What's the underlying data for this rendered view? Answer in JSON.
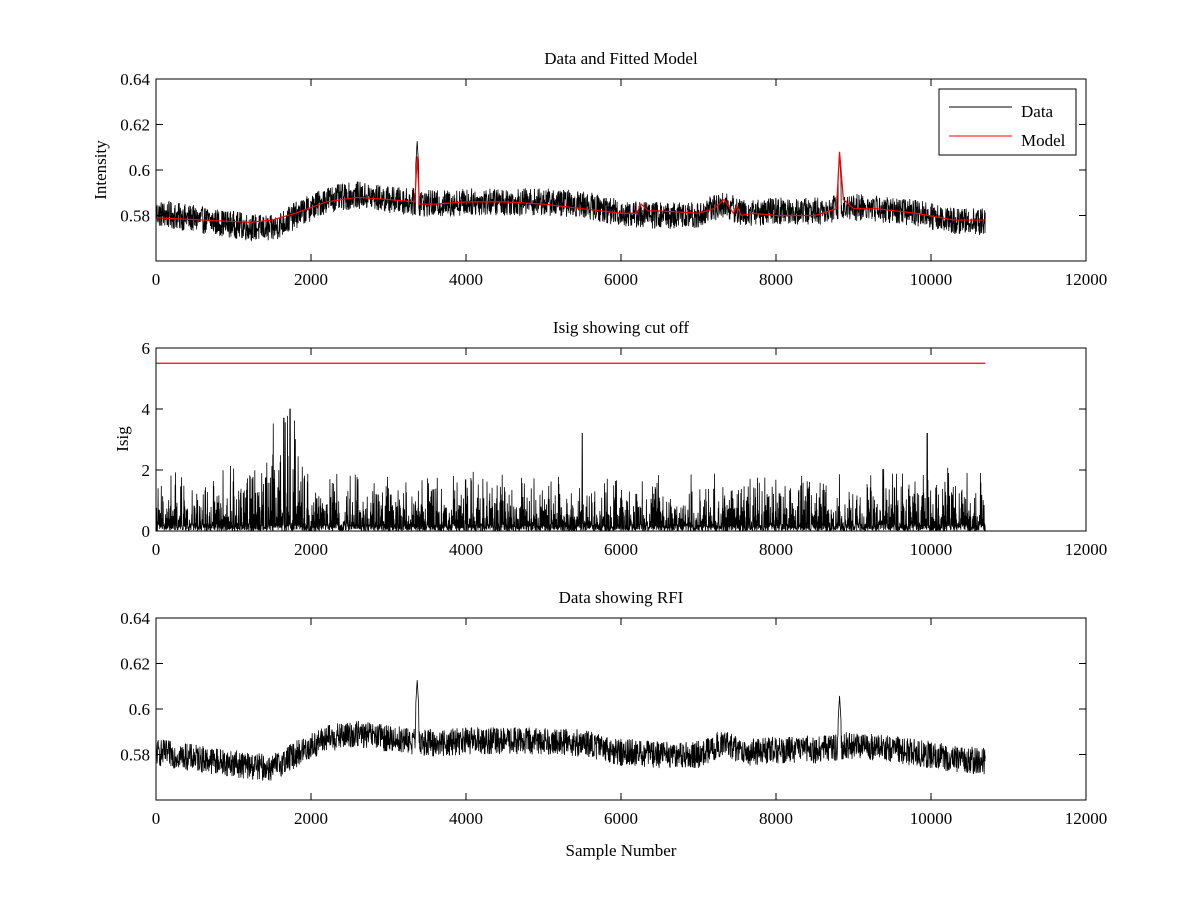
{
  "chart_data": [
    {
      "type": "line",
      "title": "Data and Fitted Model",
      "xlabel": "",
      "ylabel": "Intensity",
      "xlim": [
        0,
        12000
      ],
      "ylim": [
        0.56,
        0.64
      ],
      "xticks": [
        0,
        2000,
        4000,
        6000,
        8000,
        10000,
        12000
      ],
      "yticks": [
        0.58,
        0.6,
        0.62,
        0.64
      ],
      "xtick_labels": [
        "0",
        "2000",
        "4000",
        "6000",
        "8000",
        "10000",
        "12000"
      ],
      "ytick_labels": [
        "0.58",
        "0.6",
        "0.62",
        "0.64"
      ],
      "legend": {
        "position": "top-right",
        "entries": [
          "Data",
          "Model"
        ]
      },
      "series": [
        {
          "name": "Data",
          "color": "#000000",
          "style": "noisy",
          "x_range": [
            0,
            10700
          ],
          "trend": {
            "x": [
              0,
              600,
              1200,
              1500,
              1800,
              2200,
              2600,
              3000,
              3300,
              3600,
              4000,
              4500,
              5000,
              5500,
              6000,
              6500,
              7000,
              7300,
              7600,
              8000,
              8500,
              8750,
              8900,
              9300,
              9800,
              10300,
              10700
            ],
            "y": [
              0.581,
              0.578,
              0.575,
              0.574,
              0.58,
              0.587,
              0.589,
              0.587,
              0.586,
              0.585,
              0.586,
              0.586,
              0.586,
              0.585,
              0.581,
              0.58,
              0.58,
              0.585,
              0.581,
              0.582,
              0.582,
              0.583,
              0.584,
              0.583,
              0.581,
              0.578,
              0.577
            ]
          },
          "noise_amplitude": 0.006,
          "spikes": [
            {
              "x": 3370,
              "y": 0.613
            },
            {
              "x": 8820,
              "y": 0.607
            }
          ]
        },
        {
          "name": "Model",
          "color": "#ff0000",
          "style": "smooth",
          "x_range": [
            0,
            10700
          ],
          "x": [
            0,
            600,
            1200,
            1500,
            1800,
            2200,
            2600,
            3000,
            3340,
            3370,
            3400,
            3600,
            4000,
            4500,
            5000,
            5500,
            6000,
            6200,
            6260,
            6350,
            6500,
            7000,
            7200,
            7330,
            7450,
            7500,
            7550,
            7700,
            8000,
            8500,
            8780,
            8820,
            8870,
            9000,
            9300,
            9800,
            10300,
            10700
          ],
          "y": [
            0.579,
            0.578,
            0.577,
            0.578,
            0.581,
            0.586,
            0.588,
            0.587,
            0.586,
            0.606,
            0.585,
            0.585,
            0.586,
            0.586,
            0.585,
            0.583,
            0.581,
            0.581,
            0.585,
            0.582,
            0.582,
            0.581,
            0.583,
            0.587,
            0.581,
            0.584,
            0.58,
            0.581,
            0.58,
            0.58,
            0.583,
            0.608,
            0.587,
            0.583,
            0.583,
            0.581,
            0.578,
            0.578
          ]
        }
      ]
    },
    {
      "type": "line",
      "title": "Isig showing cut off",
      "xlabel": "",
      "ylabel": "Isig",
      "xlim": [
        0,
        12000
      ],
      "ylim": [
        0,
        6
      ],
      "xticks": [
        0,
        2000,
        4000,
        6000,
        8000,
        10000,
        12000
      ],
      "yticks": [
        0,
        2,
        4,
        6
      ],
      "xtick_labels": [
        "0",
        "2000",
        "4000",
        "6000",
        "8000",
        "10000",
        "12000"
      ],
      "ytick_labels": [
        "0",
        "2",
        "4",
        "6"
      ],
      "series": [
        {
          "color": "#000000",
          "style": "noisy-positive",
          "x_range": [
            0,
            10700
          ],
          "trend": {
            "x": [
              0,
              1000,
              1400,
              1600,
              1800,
              1900,
              2000,
              10700
            ],
            "y": [
              1.2,
              1.3,
              2.2,
              2.6,
              2.4,
              1.4,
              1.3,
              1.3
            ]
          },
          "max_peaks": [
            {
              "x": 1730,
              "y": 4.0
            },
            {
              "x": 1650,
              "y": 3.7
            },
            {
              "x": 5500,
              "y": 3.2
            },
            {
              "x": 9950,
              "y": 3.2
            }
          ]
        },
        {
          "color": "#ff0000",
          "style": "constant",
          "x": [
            0,
            10700
          ],
          "y": [
            5.5,
            5.5
          ]
        }
      ]
    },
    {
      "type": "line",
      "title": "Data showing RFI",
      "xlabel": "Sample Number",
      "ylabel": "",
      "xlim": [
        0,
        12000
      ],
      "ylim": [
        0.56,
        0.64
      ],
      "xticks": [
        0,
        2000,
        4000,
        6000,
        8000,
        10000,
        12000
      ],
      "yticks": [
        0.58,
        0.6,
        0.62,
        0.64
      ],
      "xtick_labels": [
        "0",
        "2000",
        "4000",
        "6000",
        "8000",
        "10000",
        "12000"
      ],
      "ytick_labels": [
        "0.58",
        "0.6",
        "0.62",
        "0.64"
      ],
      "series": [
        {
          "color": "#000000",
          "style": "noisy",
          "x_range": [
            0,
            10700
          ],
          "trend": {
            "x": [
              0,
              600,
              1200,
              1500,
              1800,
              2200,
              2600,
              3000,
              3300,
              3600,
              4000,
              4500,
              5000,
              5500,
              6000,
              6500,
              7000,
              7300,
              7600,
              8000,
              8500,
              8750,
              8900,
              9300,
              9800,
              10300,
              10700
            ],
            "y": [
              0.581,
              0.578,
              0.575,
              0.574,
              0.58,
              0.587,
              0.589,
              0.587,
              0.586,
              0.585,
              0.586,
              0.586,
              0.586,
              0.585,
              0.581,
              0.58,
              0.58,
              0.585,
              0.581,
              0.582,
              0.582,
              0.583,
              0.584,
              0.583,
              0.581,
              0.578,
              0.577
            ]
          },
          "noise_amplitude": 0.006,
          "spikes": [
            {
              "x": 3370,
              "y": 0.613
            },
            {
              "x": 8820,
              "y": 0.606
            }
          ]
        }
      ]
    }
  ]
}
